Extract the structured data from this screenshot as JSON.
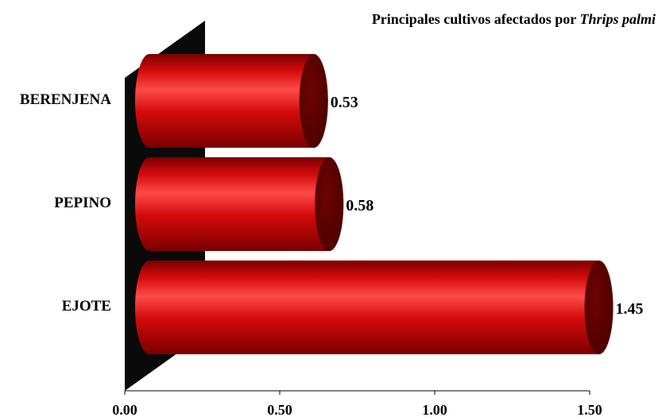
{
  "chart_data": {
    "type": "bar",
    "orientation": "horizontal",
    "title": "Principales cultivos afectados por",
    "title_italic": "Thrips palmi",
    "categories": [
      "BERENJENA",
      "PEPINO",
      "EJOTE"
    ],
    "values": [
      0.53,
      0.58,
      1.45
    ],
    "value_labels": [
      "0.53",
      "0.58",
      "1.45"
    ],
    "xlim": [
      0,
      1.5
    ],
    "xticks": [
      0,
      0.5,
      1.0,
      1.5
    ],
    "xtick_labels": [
      "0.00",
      "0.50",
      "1.00",
      "1.50"
    ],
    "xlabel": "",
    "ylabel": "",
    "grid": false,
    "legend": "none",
    "style": "3d-cylinder",
    "colors": {
      "bar_face": "#d40a0a",
      "bar_highlight": "#ff4a4a",
      "bar_dark": "#7a0000",
      "bar_cap": "#6e0202",
      "wall": "#0a0a0a"
    }
  }
}
